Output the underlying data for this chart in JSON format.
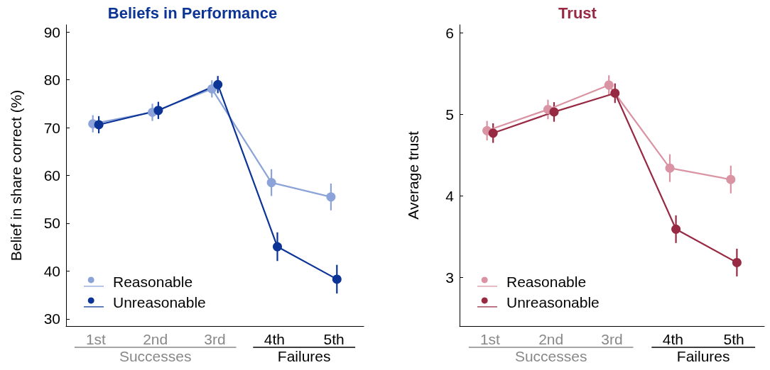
{
  "chart_data": [
    {
      "type": "line",
      "title": "Beliefs in Performance",
      "ylabel": "Belief in share correct (%)",
      "categories": [
        "1st",
        "2nd",
        "3rd",
        "4th",
        "5th"
      ],
      "series": [
        {
          "name": "Reasonable",
          "color": "#8ba3d8",
          "values": [
            70.8,
            73.2,
            78.1,
            58.5,
            55.5
          ],
          "errors": [
            1.8,
            1.8,
            1.8,
            2.8,
            2.8
          ]
        },
        {
          "name": "Unreasonable",
          "color": "#0b3496",
          "values": [
            70.6,
            73.6,
            79.0,
            45.1,
            38.3
          ],
          "errors": [
            1.8,
            1.8,
            1.8,
            3.0,
            3.0
          ]
        }
      ],
      "ylim": [
        28.5,
        91.5
      ],
      "yticks": [
        30,
        40,
        50,
        60,
        70,
        80,
        90
      ],
      "grid": false,
      "legend": "bottom left",
      "marker": "circle",
      "line_style": "solid",
      "annotations": [
        "Successes",
        "Failures"
      ]
    },
    {
      "type": "line",
      "title": "Trust",
      "ylabel": "Average trust",
      "categories": [
        "1st",
        "2nd",
        "3rd",
        "4th",
        "5th"
      ],
      "series": [
        {
          "name": "Reasonable",
          "color": "#d993a3",
          "values": [
            4.8,
            5.06,
            5.36,
            4.34,
            4.2
          ],
          "errors": [
            0.12,
            0.12,
            0.12,
            0.17,
            0.17
          ]
        },
        {
          "name": "Unreasonable",
          "color": "#982942",
          "values": [
            4.77,
            5.03,
            5.26,
            3.59,
            3.18
          ],
          "errors": [
            0.12,
            0.12,
            0.12,
            0.17,
            0.17
          ]
        }
      ],
      "ylim": [
        2.4,
        6.1
      ],
      "yticks": [
        3,
        4,
        5,
        6
      ],
      "grid": false,
      "legend": "bottom left",
      "marker": "circle",
      "line_style": "solid",
      "annotations": [
        "Successes",
        "Failures"
      ]
    }
  ]
}
